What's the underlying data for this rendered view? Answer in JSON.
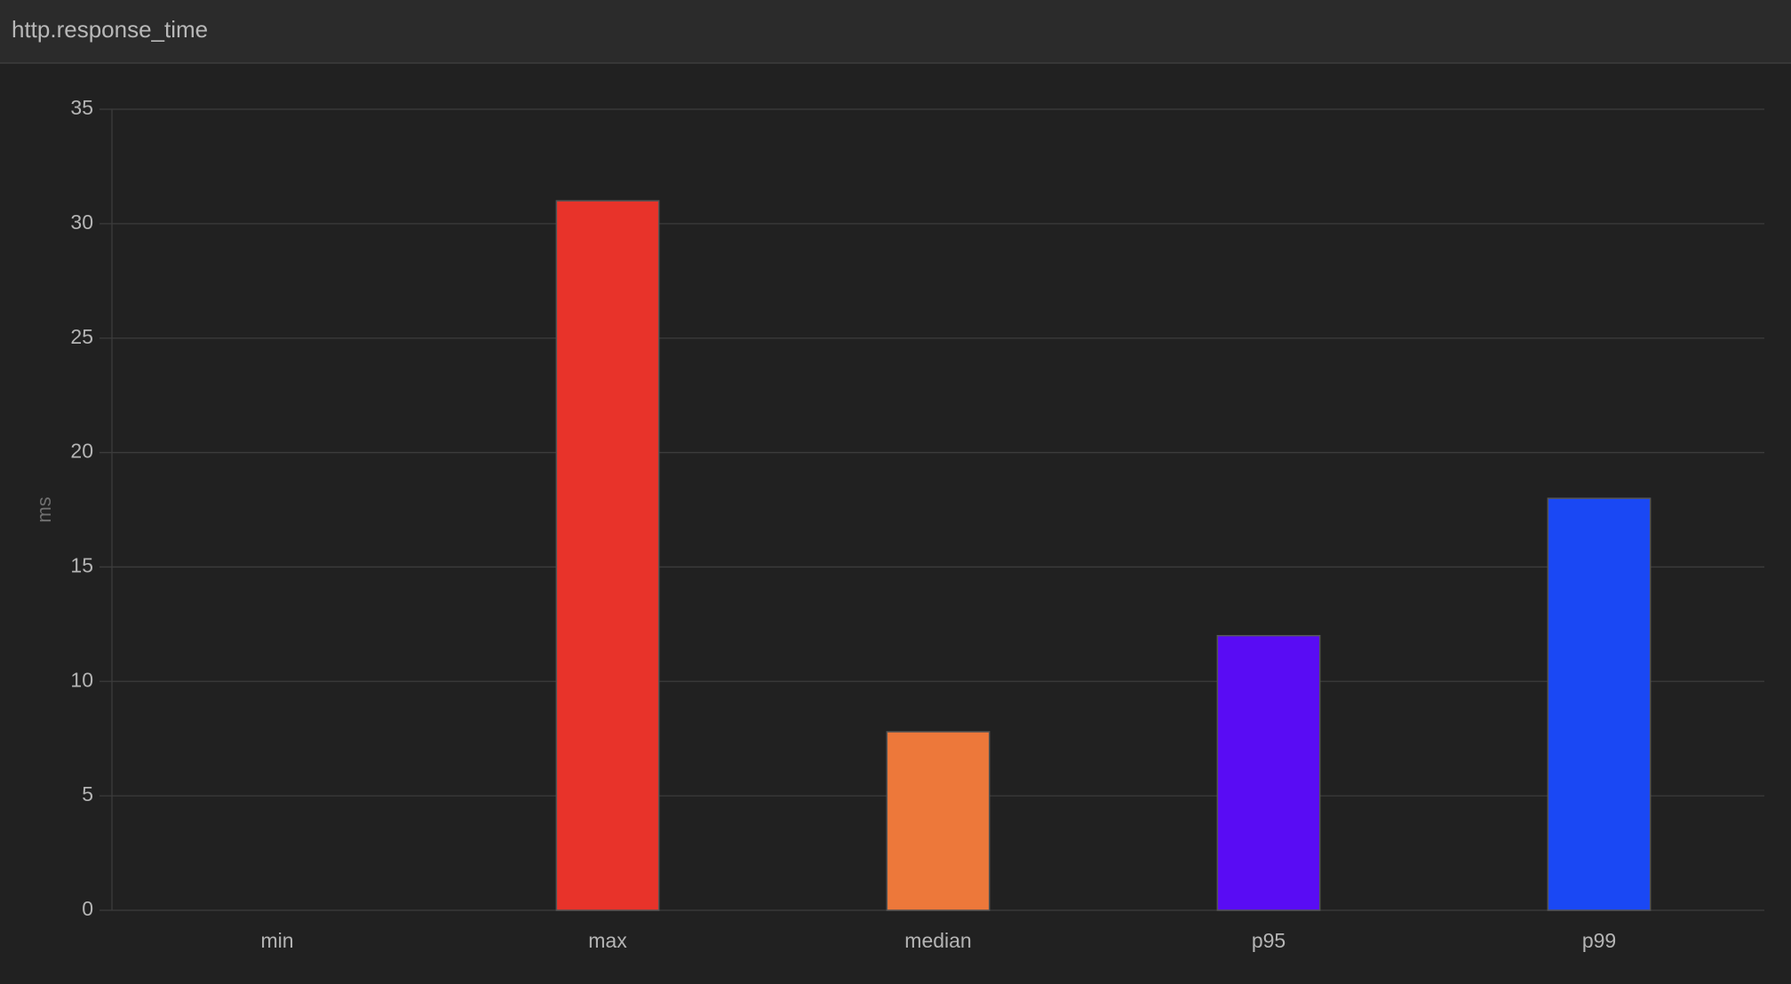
{
  "chart_data": {
    "type": "bar",
    "title": "http.response_time",
    "y_label": "ms",
    "categories": [
      "min",
      "max",
      "median",
      "p95",
      "p99"
    ],
    "values": [
      0,
      31,
      7.8,
      12,
      18
    ],
    "colors": [
      "#73bf69",
      "#e8332a",
      "#ed783a",
      "#590cf4",
      "#1a48f4"
    ],
    "ylim": [
      0,
      35
    ],
    "yticks": [
      0,
      5,
      10,
      15,
      20,
      25,
      30,
      35
    ],
    "grid": true
  }
}
